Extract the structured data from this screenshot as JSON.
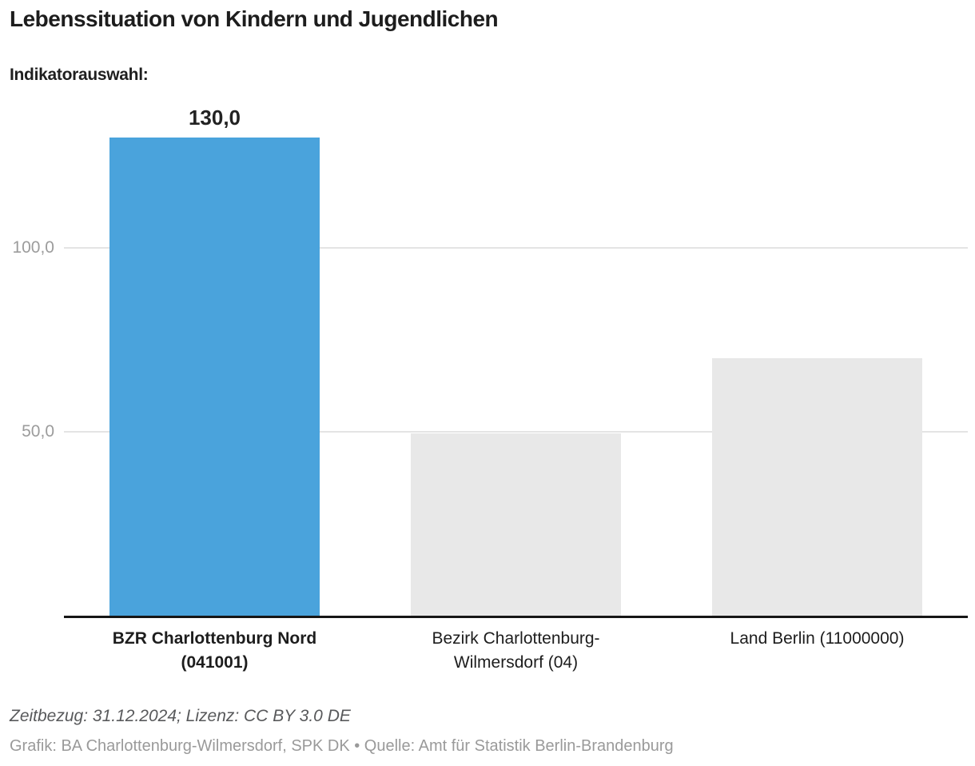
{
  "header": {
    "title": "Lebenssituation von Kindern und Jugendlichen",
    "subtitle": "Indikatorauswahl:"
  },
  "chart_data": {
    "type": "bar",
    "title": "Lebenssituation von Kindern und Jugendlichen",
    "subtitle": "Indikatorauswahl:",
    "categories": [
      "BZR Charlottenburg Nord\n(041001)",
      "Bezirk Charlottenburg-\nWilmersdorf (04)",
      "Land Berlin (11000000)"
    ],
    "values": [
      130.0,
      49.6,
      70.0
    ],
    "value_labels": [
      "130,0",
      "",
      ""
    ],
    "bar_colors": [
      "#4aa3dc",
      "#e8e8e8",
      "#e8e8e8"
    ],
    "highlight_index": 0,
    "yticks": [
      {
        "value": 50,
        "label": "50,0"
      },
      {
        "value": 100,
        "label": "100,0"
      }
    ],
    "ylim": [
      0,
      141.3
    ],
    "xlabel": "",
    "ylabel": "",
    "grid": true,
    "legend": "none"
  },
  "colors": {
    "highlight_bar": "#4aa3dc",
    "muted_bar": "#e8e8e8",
    "gridline": "#e4e4e4",
    "axis_line": "#161616",
    "tick_text": "#9c9c9c"
  },
  "footer": {
    "line1": "Zeitbezug: 31.12.2024; Lizenz: CC BY 3.0 DE",
    "line2": "Grafik: BA Charlottenburg-Wilmersdorf, SPK DK • Quelle: Amt für Statistik Berlin-Brandenburg"
  }
}
